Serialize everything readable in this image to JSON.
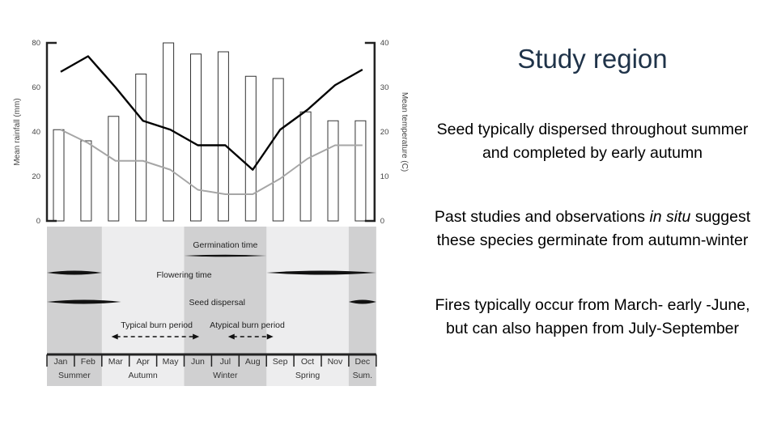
{
  "slide": {
    "title": "Study region",
    "p1": "Seed typically dispersed throughout summer and completed by early autumn",
    "p2_before": "Past studies and observations ",
    "p2_italic": "in situ",
    "p2_after": " suggest these species germinate from autumn-winter",
    "p3": "Fires typically occur from March- early -June, but can also happen from July-September"
  },
  "chart_data": {
    "type": "bar+line",
    "months": [
      "Jan",
      "Feb",
      "Mar",
      "Apr",
      "May",
      "Jun",
      "Jul",
      "Aug",
      "Sep",
      "Oct",
      "Nov",
      "Dec"
    ],
    "rainfall_mm": [
      41,
      36,
      47,
      66,
      80,
      75,
      76,
      65,
      64,
      49,
      45,
      45
    ],
    "temp_max_c": [
      33.5,
      37,
      30,
      22.5,
      20.5,
      17,
      17,
      11.5,
      20.5,
      25,
      30.5,
      34
    ],
    "temp_min_c": [
      20.5,
      17.5,
      13.5,
      13.5,
      11.5,
      7,
      6,
      6,
      9.5,
      14,
      17,
      17
    ],
    "ylabel_left": "Mean rainfall (mm)",
    "ylabel_right": "Mean temperature (C)",
    "ylim_left": [
      0,
      80
    ],
    "ylim_right": [
      0,
      40
    ],
    "yticks_left": [
      0,
      20,
      40,
      60,
      80
    ],
    "yticks_right": [
      0,
      10,
      20,
      30,
      40
    ],
    "seasons": [
      {
        "name": "Summer",
        "start": 0,
        "end": 2,
        "shade": true
      },
      {
        "name": "Autumn",
        "start": 2,
        "end": 5,
        "shade": false
      },
      {
        "name": "Winter",
        "start": 5,
        "end": 8,
        "shade": true
      },
      {
        "name": "Spring",
        "start": 8,
        "end": 11,
        "shade": false
      },
      {
        "name": "Sum.",
        "start": 11,
        "end": 12,
        "shade": true
      }
    ],
    "phenology": {
      "germination_label": "Germination time",
      "germination": [
        [
          5,
          8
        ]
      ],
      "flowering_label": "Flowering time",
      "flowering": [
        [
          0,
          2
        ],
        [
          8,
          12
        ]
      ],
      "dispersal_label": "Seed dispersal",
      "dispersal": [
        [
          0,
          2.7
        ],
        [
          11,
          12
        ]
      ],
      "typical_burn_label": "Typical burn period",
      "typical_burn": [
        2.35,
        5.55
      ],
      "atypical_burn_label": "Atypical burn period",
      "atypical_burn": [
        6.6,
        8.25
      ]
    },
    "colors": {
      "shade": "#d0d0d1",
      "band_bg": "#ededee",
      "max_line": "#000000",
      "min_line": "#a6a6a6"
    }
  }
}
